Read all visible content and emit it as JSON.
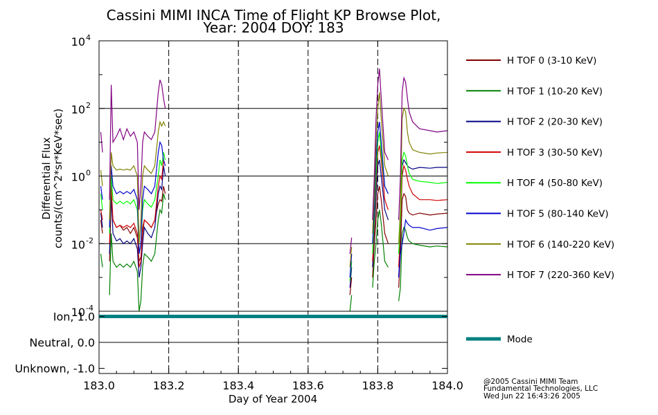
{
  "chart_data": [
    {
      "type": "line",
      "title": [
        "Cassini MIMI INCA Time of Flight KP Browse Plot,",
        "Year: 2004 DOY: 183"
      ],
      "xlabel": "Day of Year 2004",
      "ylabel": [
        "Differential Flux",
        "counts/(cm^2*sr*KeV*sec)"
      ],
      "yscale": "log",
      "xlim": [
        183.0,
        184.0
      ],
      "ylim": [
        0.0001,
        10000
      ],
      "y_ticks": [
        {
          "value": 10000,
          "base": "10",
          "exp": "4"
        },
        {
          "value": 100,
          "base": "10",
          "exp": "2"
        },
        {
          "value": 1,
          "base": "10",
          "exp": "0"
        },
        {
          "value": 0.01,
          "base": "10",
          "exp": "-2"
        },
        {
          "value": 0.0001,
          "base": "10",
          "exp": "-4"
        }
      ],
      "gridlines_solid_y": [
        100,
        1,
        0.01
      ],
      "gridlines_dashed_x": [
        183.2,
        183.4,
        183.6,
        183.8
      ],
      "legend_position": "right",
      "x": [
        183.0,
        183.005,
        183.01,
        183.02,
        183.025,
        183.03,
        183.035,
        183.04,
        183.05,
        183.06,
        183.07,
        183.08,
        183.09,
        183.1,
        183.11,
        183.115,
        183.12,
        183.125,
        183.13,
        183.14,
        183.15,
        183.16,
        183.17,
        183.175,
        183.18,
        183.185,
        183.19,
        183.195,
        183.7,
        183.71,
        183.715,
        183.72,
        183.725,
        183.73,
        183.78,
        183.785,
        183.79,
        183.795,
        183.8,
        183.805,
        183.81,
        183.82,
        183.83,
        183.84,
        183.85,
        183.855,
        183.86,
        183.865,
        183.87,
        183.875,
        183.88,
        183.885,
        183.89,
        183.9,
        183.92,
        183.95,
        183.97,
        184.0
      ],
      "series": [
        {
          "name": "H TOF 0 (3-10 KeV)",
          "color": "#800000",
          "values": [
            null,
            0.05,
            0.02,
            null,
            null,
            0.003,
            0.2,
            0.05,
            0.03,
            0.035,
            0.025,
            0.03,
            0.02,
            0.03,
            0.015,
            0.003,
            0.004,
            0.02,
            0.05,
            0.04,
            0.03,
            0.05,
            0.15,
            0.2,
            0.18,
            0.5,
            0.3,
            null,
            null,
            null,
            null,
            0.0003,
            0.001,
            null,
            null,
            0.001,
            0.01,
            0.05,
            0.3,
            0.5,
            0.2,
            0.02,
            0.01,
            null,
            null,
            null,
            0.0005,
            0.005,
            0.2,
            0.3,
            0.25,
            0.1,
            0.08,
            0.07,
            0.08,
            0.07,
            0.075,
            0.08
          ]
        },
        {
          "name": "H TOF 1 (10-20 KeV)",
          "color": "#008000",
          "values": [
            null,
            0.005,
            0.002,
            null,
            null,
            0.0003,
            0.02,
            0.003,
            0.002,
            0.0025,
            0.002,
            0.0025,
            0.002,
            0.003,
            0.0015,
            0.0001,
            0.0002,
            0.002,
            0.005,
            0.004,
            0.003,
            0.005,
            0.05,
            0.1,
            0.08,
            0.3,
            0.2,
            null,
            null,
            null,
            null,
            0.0001,
            0.0003,
            null,
            null,
            0.0005,
            0.003,
            0.01,
            0.05,
            0.1,
            0.04,
            0.003,
            0.002,
            null,
            null,
            null,
            0.0002,
            0.0005,
            0.02,
            0.03,
            0.025,
            0.015,
            0.012,
            0.01,
            0.009,
            0.008,
            0.0085,
            0.008
          ]
        },
        {
          "name": "H TOF 2 (20-30 KeV)",
          "color": "#000080",
          "values": [
            null,
            0.08,
            0.03,
            null,
            null,
            0.005,
            0.3,
            0.02,
            0.012,
            0.014,
            0.01,
            0.012,
            0.01,
            0.014,
            0.007,
            0.001,
            0.002,
            0.01,
            0.03,
            0.02,
            0.015,
            0.03,
            0.3,
            0.5,
            0.4,
            2.0,
            1.0,
            null,
            null,
            null,
            null,
            0.0005,
            0.002,
            null,
            null,
            0.002,
            0.02,
            0.2,
            2.0,
            3.0,
            1.0,
            0.1,
            0.05,
            null,
            null,
            null,
            0.001,
            0.01,
            2.0,
            3.0,
            2.5,
            2.0,
            1.8,
            1.6,
            1.8,
            1.7,
            1.8,
            1.8
          ]
        },
        {
          "name": "H TOF 3 (30-50 KeV)",
          "color": "#d00000",
          "values": [
            null,
            0.1,
            0.05,
            null,
            null,
            0.01,
            0.5,
            0.05,
            0.03,
            0.035,
            0.03,
            0.035,
            0.03,
            0.04,
            0.02,
            0.002,
            0.003,
            0.03,
            0.05,
            0.04,
            0.03,
            0.05,
            0.5,
            1.0,
            0.8,
            3.0,
            2.0,
            null,
            null,
            null,
            null,
            0.0008,
            0.003,
            null,
            null,
            0.003,
            0.03,
            0.5,
            5.0,
            8.0,
            3.0,
            0.2,
            0.1,
            null,
            null,
            null,
            0.002,
            0.02,
            1.0,
            2.0,
            1.5,
            0.8,
            0.5,
            0.3,
            0.2,
            0.2,
            0.19,
            0.2
          ]
        },
        {
          "name": "H TOF 4 (50-80 KeV)",
          "color": "#00ff00",
          "values": [
            null,
            0.3,
            0.1,
            null,
            null,
            0.02,
            1.0,
            0.2,
            0.15,
            0.18,
            0.15,
            0.18,
            0.15,
            0.2,
            0.1,
            0.005,
            0.01,
            0.1,
            0.2,
            0.15,
            0.12,
            0.2,
            1.0,
            3.0,
            2.0,
            5.0,
            3.0,
            null,
            null,
            null,
            null,
            0.0008,
            0.003,
            null,
            null,
            0.005,
            0.05,
            1.0,
            10.0,
            20.0,
            5.0,
            0.5,
            0.3,
            null,
            null,
            null,
            0.005,
            0.05,
            3.0,
            5.0,
            4.0,
            2.0,
            1.2,
            0.8,
            0.7,
            0.65,
            0.6,
            0.65
          ]
        },
        {
          "name": "H TOF 5 (80-140 KeV)",
          "color": "#0000cd",
          "values": [
            null,
            0.5,
            0.2,
            null,
            null,
            0.03,
            2.0,
            0.5,
            0.3,
            0.35,
            0.3,
            0.35,
            0.3,
            0.4,
            0.2,
            0.005,
            0.01,
            0.2,
            0.5,
            0.4,
            0.3,
            0.5,
            5.0,
            10.0,
            8.0,
            3.0,
            2.0,
            null,
            null,
            null,
            null,
            0.001,
            0.005,
            null,
            null,
            0.01,
            0.1,
            3.0,
            20.0,
            40.0,
            10.0,
            0.5,
            0.3,
            null,
            null,
            null,
            0.001,
            0.005,
            0.01,
            0.02,
            0.05,
            0.04,
            0.035,
            0.03,
            0.03,
            0.025,
            0.028,
            0.03
          ]
        },
        {
          "name": "H TOF 6 (140-220 KeV)",
          "color": "#808000",
          "values": [
            null,
            1.5,
            0.5,
            null,
            null,
            0.05,
            5.0,
            2.0,
            1.5,
            1.6,
            1.5,
            1.6,
            1.5,
            2.0,
            1.0,
            0.01,
            0.05,
            1.0,
            2.0,
            1.5,
            1.2,
            2.0,
            20.0,
            40.0,
            30.0,
            40.0,
            30.0,
            null,
            null,
            null,
            null,
            0.002,
            0.008,
            null,
            null,
            0.02,
            0.3,
            10.0,
            100.0,
            300.0,
            50.0,
            2.0,
            1.0,
            null,
            null,
            null,
            0.01,
            0.1,
            50.0,
            100.0,
            80.0,
            20.0,
            10.0,
            6.0,
            5.0,
            4.5,
            4.8,
            5.0
          ]
        },
        {
          "name": "H TOF 7 (220-360 KeV)",
          "color": "#800080",
          "values": [
            null,
            20.0,
            5.0,
            null,
            null,
            0.2,
            500.0,
            10.0,
            15.0,
            25.0,
            12.0,
            25.0,
            15.0,
            20.0,
            10.0,
            0.1,
            0.5,
            10.0,
            20.0,
            15.0,
            12.0,
            20.0,
            300.0,
            700.0,
            500.0,
            200.0,
            100.0,
            null,
            null,
            null,
            null,
            0.005,
            0.015,
            null,
            null,
            0.05,
            1.0,
            50.0,
            500.0,
            1500.0,
            200.0,
            5.0,
            3.0,
            null,
            null,
            null,
            0.05,
            1.0,
            300.0,
            800.0,
            600.0,
            200.0,
            80.0,
            40.0,
            25.0,
            22.0,
            20.0,
            22.0
          ]
        }
      ]
    },
    {
      "type": "line",
      "xlim": [
        183.0,
        184.0
      ],
      "ylim": [
        -1.2,
        1.2
      ],
      "y_ticks": [
        {
          "value": 1.0,
          "label": "Ion, 1.0"
        },
        {
          "value": 0.0,
          "label": "Neutral, 0.0"
        },
        {
          "value": -1.0,
          "label": "Unknown, -1.0"
        }
      ],
      "gridlines_solid_y": [
        0.0
      ],
      "gridlines_dashed_x": [
        183.2,
        183.4,
        183.6,
        183.8
      ],
      "x_ticks": [
        "183.0",
        "183.2",
        "183.4",
        "183.6",
        "183.8",
        "184.0"
      ],
      "x_tick_values": [
        183.0,
        183.2,
        183.4,
        183.6,
        183.8,
        184.0
      ],
      "series": [
        {
          "name": "Mode",
          "color": "#008080",
          "x": [
            183.0,
            184.0
          ],
          "values": [
            1.0,
            1.0
          ]
        }
      ]
    }
  ],
  "credit": {
    "line1": "@2005 Cassini MIMI Team",
    "line2": "Fundamental Technologies, LLC",
    "line3": "Wed Jun 22 16:43:26 2005"
  }
}
